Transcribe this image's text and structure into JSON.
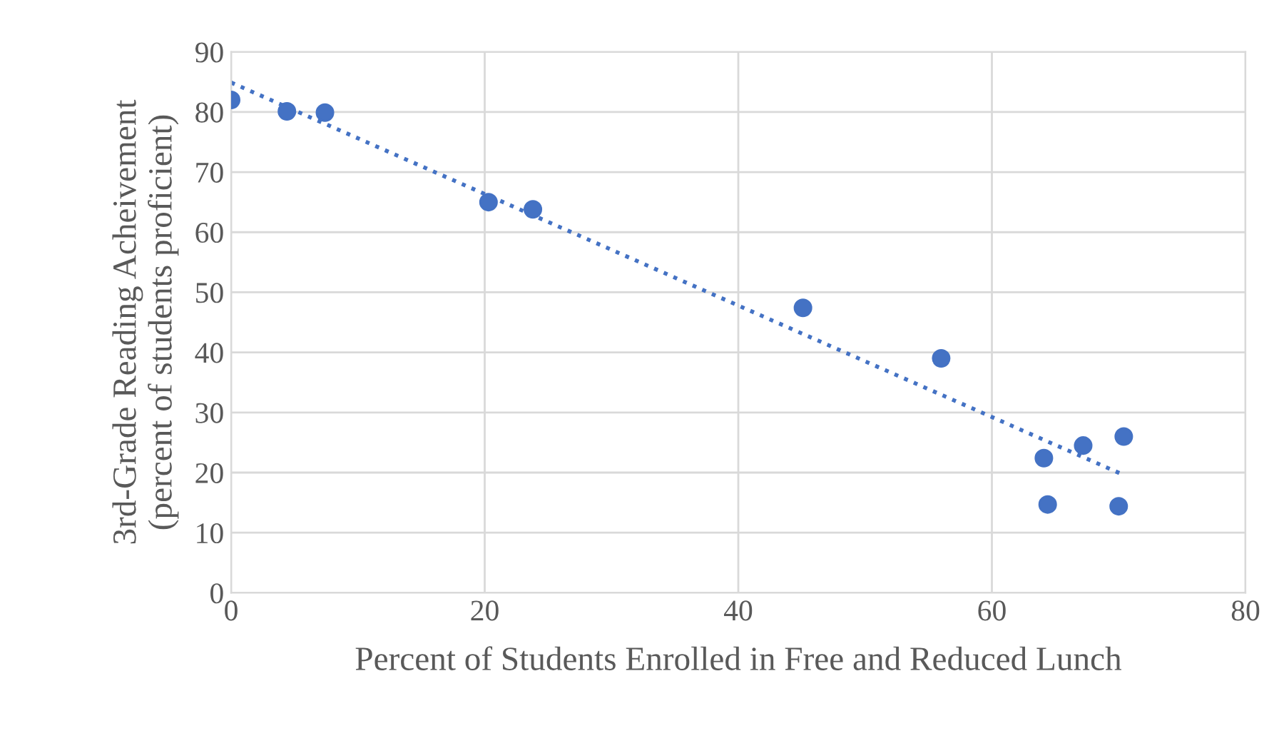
{
  "chart_data": {
    "type": "scatter",
    "xlabel": "Percent of Students Enrolled in Free and Reduced Lunch",
    "ylabel": "3rd-Grade Reading Acheivement\n(percent of students proficient)",
    "xlim": [
      0,
      80
    ],
    "xticks": [
      0,
      20,
      40,
      60,
      80
    ],
    "ylim": [
      0,
      90
    ],
    "yticks": [
      0,
      10,
      20,
      30,
      40,
      50,
      60,
      70,
      80,
      90
    ],
    "grid": true,
    "legend": false,
    "series": [
      {
        "color": "#4472c4",
        "marker": "circle",
        "x": [
          0,
          4.4,
          7.4,
          20.3,
          23.8,
          45.1,
          56.0,
          64.1,
          64.4,
          67.2,
          70.4,
          70.0
        ],
        "values": [
          82.0,
          80.1,
          79.9,
          65.0,
          63.8,
          47.4,
          39.0,
          22.4,
          14.7,
          24.5,
          26.0,
          14.4
        ]
      },
      {
        "type": "line",
        "color": "#4472c4",
        "marker": "none",
        "line_style": "dotted",
        "x": [
          0,
          70.4
        ],
        "values": [
          84.9,
          19.6
        ]
      }
    ]
  }
}
